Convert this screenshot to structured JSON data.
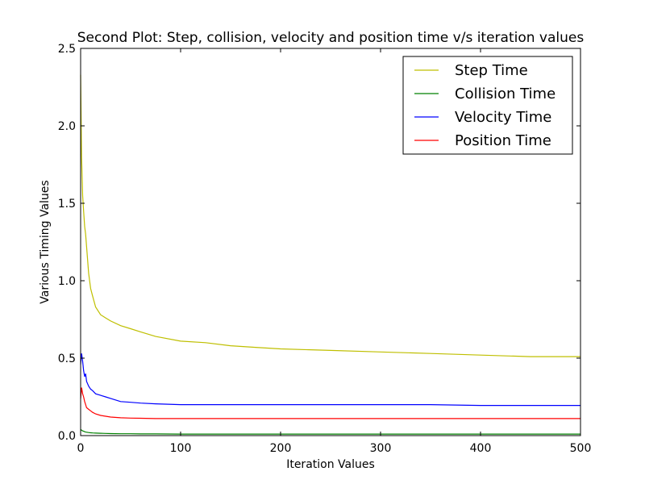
{
  "chart_data": {
    "type": "line",
    "title": "Second Plot: Step, collision, velocity and position time v/s iteration values",
    "xlabel": "Iteration Values",
    "ylabel": "Various Timing Values",
    "xlim": [
      0,
      500
    ],
    "ylim": [
      0.0,
      2.5
    ],
    "xticks": [
      "0",
      "100",
      "200",
      "300",
      "400",
      "500"
    ],
    "yticks": [
      "0.0",
      "0.5",
      "1.0",
      "1.5",
      "2.0",
      "2.5"
    ],
    "grid": false,
    "legend_position": "top-right",
    "x": [
      0,
      1,
      2,
      3,
      4,
      5,
      6,
      8,
      10,
      12,
      15,
      20,
      25,
      30,
      40,
      50,
      60,
      75,
      100,
      125,
      150,
      175,
      200,
      250,
      300,
      350,
      400,
      450,
      500
    ],
    "series": [
      {
        "name": "Step Time",
        "color": "#bfbf00",
        "values": [
          2.33,
          1.8,
          1.55,
          1.45,
          1.35,
          1.3,
          1.22,
          1.05,
          0.95,
          0.9,
          0.83,
          0.78,
          0.76,
          0.74,
          0.71,
          0.69,
          0.67,
          0.64,
          0.61,
          0.6,
          0.58,
          0.57,
          0.56,
          0.55,
          0.54,
          0.53,
          0.52,
          0.51,
          0.51
        ]
      },
      {
        "name": "Collision Time",
        "color": "#008000",
        "values": [
          0.04,
          0.035,
          0.03,
          0.028,
          0.025,
          0.023,
          0.022,
          0.02,
          0.018,
          0.017,
          0.016,
          0.015,
          0.014,
          0.013,
          0.012,
          0.012,
          0.011,
          0.011,
          0.01,
          0.01,
          0.01,
          0.01,
          0.01,
          0.01,
          0.01,
          0.01,
          0.01,
          0.01,
          0.01
        ]
      },
      {
        "name": "Velocity Time",
        "color": "#0000ff",
        "values": [
          0.46,
          0.53,
          0.48,
          0.42,
          0.38,
          0.4,
          0.35,
          0.32,
          0.3,
          0.29,
          0.27,
          0.26,
          0.25,
          0.24,
          0.22,
          0.215,
          0.21,
          0.205,
          0.2,
          0.2,
          0.2,
          0.2,
          0.2,
          0.2,
          0.2,
          0.2,
          0.195,
          0.195,
          0.195
        ]
      },
      {
        "name": "Position Time",
        "color": "#ff0000",
        "values": [
          0.24,
          0.31,
          0.27,
          0.25,
          0.22,
          0.2,
          0.18,
          0.17,
          0.16,
          0.15,
          0.14,
          0.13,
          0.125,
          0.12,
          0.115,
          0.113,
          0.112,
          0.11,
          0.11,
          0.11,
          0.11,
          0.11,
          0.11,
          0.11,
          0.11,
          0.11,
          0.11,
          0.11,
          0.11
        ]
      }
    ]
  }
}
